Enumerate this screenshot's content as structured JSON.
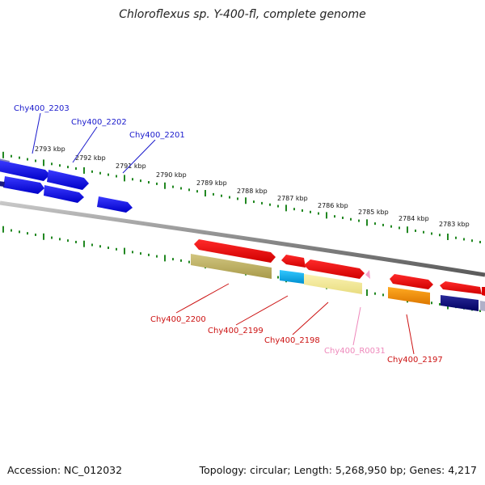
{
  "title": "Chloroflexus sp. Y-400-fl, complete genome",
  "accession": "Accession: NC_012032",
  "summary": "Topology: circular; Length: 5,268,950 bp; Genes: 4,217",
  "colors": {
    "top_label": "#1a1acc",
    "bottom_label": "#cc1111",
    "rna_label": "#ee88bb",
    "tick": "#228822",
    "backbone": "#909090"
  },
  "kbp_labels": [
    "2793 kbp",
    "2792 kbp",
    "2791 kbp",
    "2790 kbp",
    "2789 kbp",
    "2788 kbp",
    "2787 kbp",
    "2786 kbp",
    "2785 kbp",
    "2784 kbp",
    "2783 kbp"
  ],
  "top_genes": [
    {
      "label": "Chy400_2203"
    },
    {
      "label": "Chy400_2202"
    },
    {
      "label": "Chy400_2201"
    }
  ],
  "bottom_genes": [
    {
      "label": "Chy400_2200"
    },
    {
      "label": "Chy400_2199"
    },
    {
      "label": "Chy400_2198"
    },
    {
      "label": "Chy400_R0031"
    },
    {
      "label": "Chy400_2197"
    }
  ]
}
